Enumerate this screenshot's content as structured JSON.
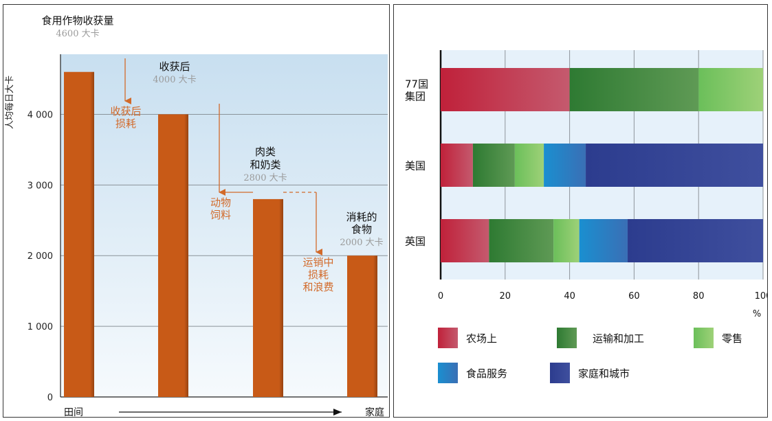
{
  "colors": {
    "bar": "#c85a17",
    "annotation": "#d26a2a",
    "gridline": "#8a9299",
    "muted": "#9a9a9a",
    "plot_bg_top": "#c8dff0",
    "plot_bg_bottom": "#f6fafd",
    "stack_bg": "#e6f1fa"
  },
  "chart_data": [
    {
      "type": "bar",
      "ylabel": "人均每日大卡",
      "yticks": [
        0,
        1000,
        2000,
        3000,
        4000
      ],
      "ytick_labels": [
        "0",
        "1 000",
        "2 000",
        "3 000",
        "4 000"
      ],
      "ylim": [
        0,
        4850
      ],
      "values": [
        4600,
        4000,
        2800,
        2000
      ],
      "x_start_label": "田间",
      "x_end_label": "家庭",
      "stage_labels": [
        {
          "title_lines": [
            "食用作物收获量"
          ],
          "value_text": "4600  大卡"
        },
        {
          "title_lines": [
            "收获后"
          ],
          "value_text": "4000  大卡"
        },
        {
          "title_lines": [
            "肉类",
            "和奶类"
          ],
          "value_text": "2800  大卡"
        },
        {
          "title_lines": [
            "消耗的",
            "食物"
          ],
          "value_text": "2000  大卡"
        }
      ],
      "loss_labels": [
        {
          "lines": [
            "收获后",
            "损耗"
          ]
        },
        {
          "lines": [
            "动物",
            "饲料"
          ]
        },
        {
          "lines": [
            "运销中",
            "损耗",
            "和浪费"
          ]
        }
      ]
    },
    {
      "type": "bar",
      "orientation": "horizontal",
      "stacked": true,
      "categories": [
        "77国集团",
        "美国",
        "英国"
      ],
      "category_label_lines": [
        [
          "77国",
          "集团"
        ],
        [
          "美国"
        ],
        [
          "英国"
        ]
      ],
      "xlim": [
        0,
        100
      ],
      "xticks": [
        0,
        20,
        40,
        60,
        80,
        100
      ],
      "xunit": "%",
      "grid": true,
      "series": [
        {
          "name": "农场上",
          "color_dark": "#c0213a",
          "color_light": "#c45a6e",
          "values": [
            40,
            10,
            15
          ]
        },
        {
          "name": "运输和加工",
          "color_dark": "#2e7a32",
          "color_light": "#5f9a55",
          "values": [
            40,
            13,
            20
          ]
        },
        {
          "name": "零售",
          "color_dark": "#6bbf5a",
          "color_light": "#9ed178",
          "values": [
            20,
            9,
            8
          ]
        },
        {
          "name": "食品服务",
          "color_dark": "#1a8fd0",
          "color_light": "#3a6fb5",
          "values": [
            0,
            13,
            15
          ]
        },
        {
          "name": "家庭和城市",
          "color_dark": "#2c3c8e",
          "color_light": "#3f4f9e",
          "values": [
            0,
            55,
            42
          ]
        }
      ]
    }
  ]
}
